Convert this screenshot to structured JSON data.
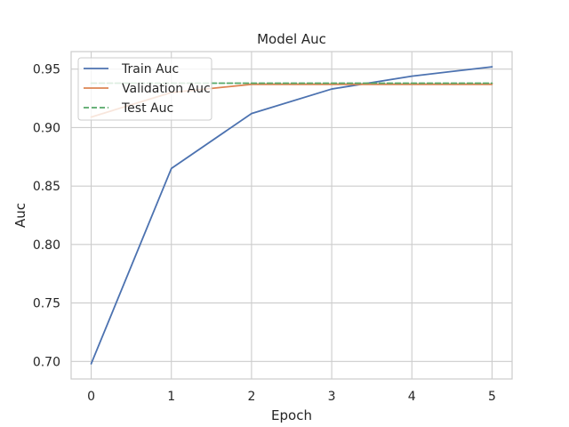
{
  "chart_data": {
    "type": "line",
    "title": "Model Auc",
    "xlabel": "Epoch",
    "ylabel": "Auc",
    "x": [
      0,
      1,
      2,
      3,
      4,
      5
    ],
    "xticks": [
      "0",
      "1",
      "2",
      "3",
      "4",
      "5"
    ],
    "yticks": [
      "0.70",
      "0.75",
      "0.80",
      "0.85",
      "0.90",
      "0.95"
    ],
    "ylim": [
      0.685,
      0.965
    ],
    "xlim": [
      -0.25,
      5.25
    ],
    "grid": true,
    "legend_position": "top-left",
    "series": [
      {
        "name": "Train Auc",
        "color": "#4c72b0",
        "style": "solid",
        "values": [
          0.698,
          0.865,
          0.912,
          0.933,
          0.944,
          0.952
        ]
      },
      {
        "name": "Validation Auc",
        "color": "#dd8452",
        "style": "solid",
        "values": [
          0.909,
          0.93,
          0.937,
          0.937,
          0.937,
          0.937
        ]
      },
      {
        "name": "Test Auc",
        "color": "#55a868",
        "style": "dashed",
        "values": [
          0.938,
          0.938,
          0.938,
          0.938,
          0.938,
          0.938
        ]
      }
    ]
  }
}
